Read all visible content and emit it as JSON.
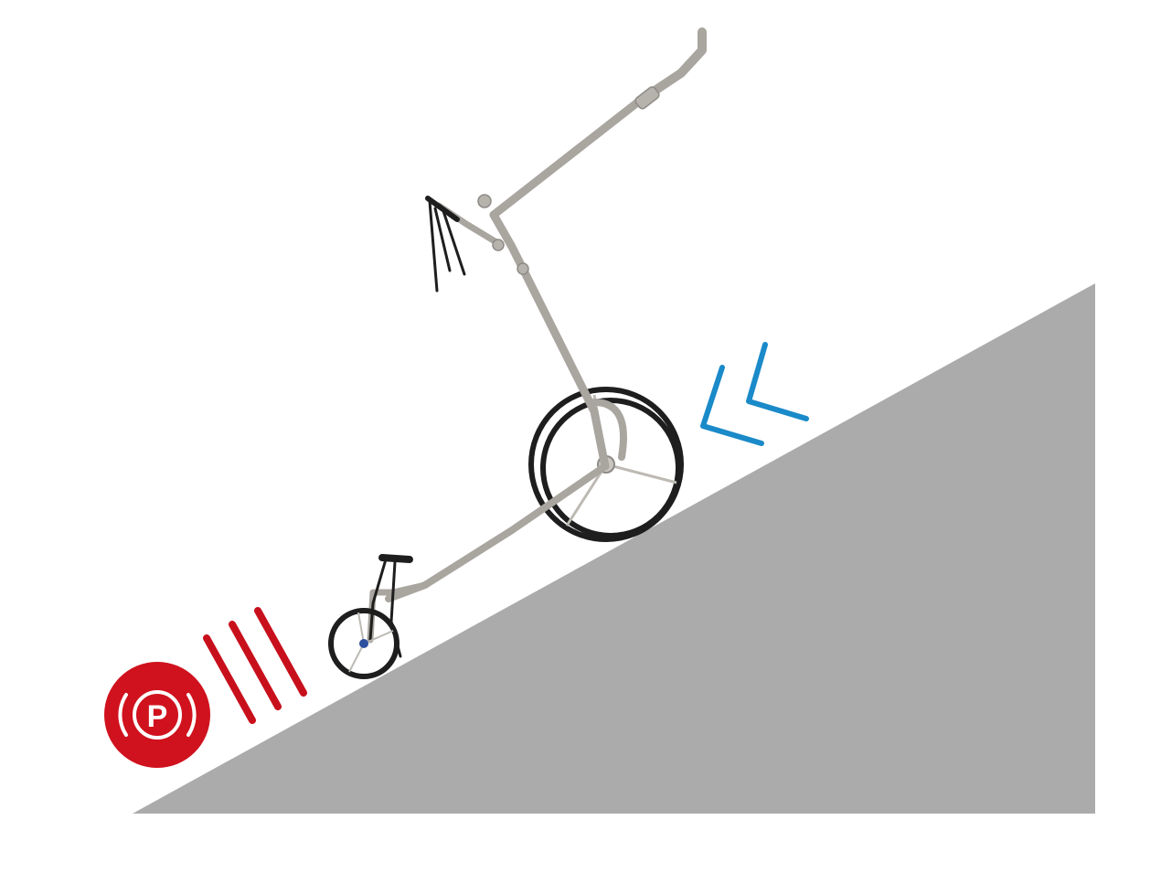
{
  "scene": {
    "description_icon": "golf-trolley-on-slope",
    "slope_color": "#ababac",
    "background_color": "#ffffff"
  },
  "parking_brake": {
    "icon": "parking-brake-icon",
    "letter": "P",
    "color": "#d0121e",
    "stripes_color": "#c8101d"
  },
  "uphill_arrows": {
    "icon": "double-chevron-icon",
    "color": "#1a8ac9"
  },
  "trolley": {
    "frame_color": "#a9a6a0",
    "wheel_color": "#1e1e1e"
  }
}
